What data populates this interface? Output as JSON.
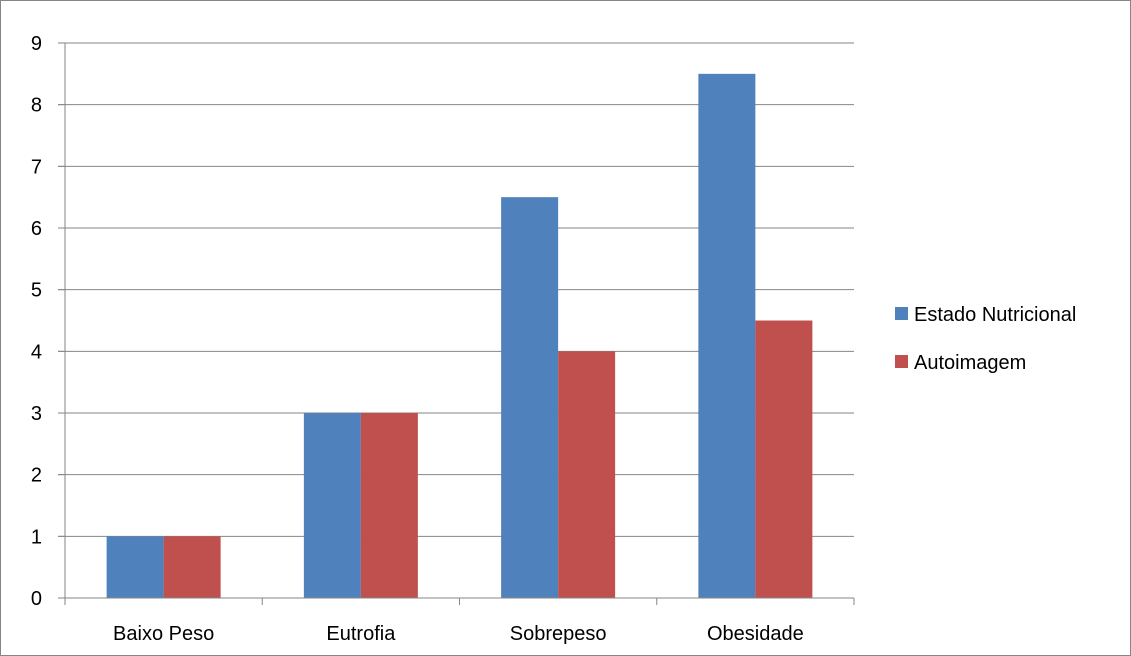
{
  "chart_data": {
    "type": "bar",
    "categories": [
      "Baixo Peso",
      "Eutrofia",
      "Sobrepeso",
      "Obesidade"
    ],
    "series": [
      {
        "name": "Estado Nutricional",
        "color": "#4F81BD",
        "values": [
          1,
          3,
          6.5,
          8.5
        ]
      },
      {
        "name": "Autoimagem",
        "color": "#C0504D",
        "values": [
          1,
          3,
          4,
          4.5
        ]
      }
    ],
    "ylim": [
      0,
      9
    ],
    "yticks": [
      "0",
      "1",
      "2",
      "3",
      "4",
      "5",
      "6",
      "7",
      "8",
      "9"
    ],
    "grid": true,
    "legend_position": "right"
  }
}
